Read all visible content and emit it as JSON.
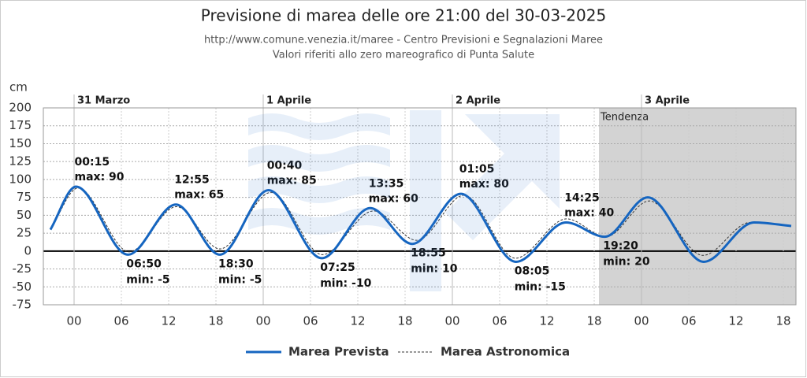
{
  "chart_data": {
    "type": "line",
    "title": "Previsione di marea delle ore 21:00 del 30-03-2025",
    "subtitle": [
      "http://www.comune.venezia.it/maree - Centro Previsioni e Segnalazioni Maree",
      "Valori riferiti allo zero mareografico di Punta Salute"
    ],
    "y_label": "cm",
    "ylim": [
      -75,
      200
    ],
    "yticks": [
      -75,
      -50,
      -25,
      0,
      25,
      50,
      75,
      100,
      125,
      150,
      175,
      200
    ],
    "xlim": [
      -3.9,
      91.6
    ],
    "xticks": [
      {
        "value": 0,
        "label": "00"
      },
      {
        "value": 6,
        "label": "06"
      },
      {
        "value": 12,
        "label": "12"
      },
      {
        "value": 18,
        "label": "18"
      },
      {
        "value": 24,
        "label": "00"
      },
      {
        "value": 30,
        "label": "06"
      },
      {
        "value": 36,
        "label": "12"
      },
      {
        "value": 42,
        "label": "18"
      },
      {
        "value": 48,
        "label": "00"
      },
      {
        "value": 54,
        "label": "06"
      },
      {
        "value": 60,
        "label": "12"
      },
      {
        "value": 66,
        "label": "18"
      },
      {
        "value": 72,
        "label": "00"
      },
      {
        "value": 78,
        "label": "06"
      },
      {
        "value": 84,
        "label": "12"
      },
      {
        "value": 90,
        "label": "18"
      }
    ],
    "days": [
      {
        "x": 0,
        "label": "31 Marzo"
      },
      {
        "x": 24,
        "label": "1 Aprile"
      },
      {
        "x": 48,
        "label": "2 Aprile"
      },
      {
        "x": 72,
        "label": "3 Aprile"
      }
    ],
    "trend": {
      "label": "Tendenza",
      "start": 66.6,
      "color": "#d3d3d3"
    },
    "grid": true,
    "series": [
      {
        "name": "Marea Prevista",
        "color": "#1565c0",
        "style": "solid",
        "x": [
          -3,
          0.25,
          6.83,
          12.92,
          18.5,
          24.67,
          31.42,
          37.58,
          42.92,
          49.08,
          56.08,
          62.42,
          67.33,
          72.8,
          79.9,
          86.3,
          91
        ],
        "values": [
          30,
          90,
          -5,
          65,
          -5,
          85,
          -10,
          60,
          10,
          80,
          -15,
          40,
          20,
          75,
          -15,
          40,
          35
        ]
      },
      {
        "name": "Marea Astronomica",
        "color": "#333333",
        "style": "dashed",
        "x": [
          -3,
          0.5,
          7,
          13,
          18.5,
          25,
          31.5,
          38,
          43.5,
          49.5,
          56,
          62.5,
          67.5,
          73,
          79.8,
          85.8,
          91
        ],
        "values": [
          30,
          88,
          -1,
          62,
          3,
          82,
          -5,
          56,
          15,
          78,
          -10,
          45,
          20,
          70,
          -6,
          40,
          35
        ]
      }
    ],
    "annotations": [
      {
        "time": "00:15",
        "text": "max: 90",
        "x": 0.25,
        "y": 90,
        "kind": "max"
      },
      {
        "time": "06:50",
        "text": "min: -5",
        "x": 6.83,
        "y": -5,
        "kind": "min"
      },
      {
        "time": "12:55",
        "text": "max: 65",
        "x": 12.92,
        "y": 65,
        "kind": "max"
      },
      {
        "time": "18:30",
        "text": "min: -5",
        "x": 18.5,
        "y": -5,
        "kind": "min"
      },
      {
        "time": "00:40",
        "text": "max: 85",
        "x": 24.67,
        "y": 85,
        "kind": "max"
      },
      {
        "time": "07:25",
        "text": "min: -10",
        "x": 31.42,
        "y": -10,
        "kind": "min"
      },
      {
        "time": "13:35",
        "text": "max: 60",
        "x": 37.58,
        "y": 60,
        "kind": "max"
      },
      {
        "time": "18:55",
        "text": "min: 10",
        "x": 42.92,
        "y": 10,
        "kind": "min"
      },
      {
        "time": "01:05",
        "text": "max: 80",
        "x": 49.08,
        "y": 80,
        "kind": "max"
      },
      {
        "time": "08:05",
        "text": "min: -15",
        "x": 56.08,
        "y": -15,
        "kind": "min"
      },
      {
        "time": "14:25",
        "text": "max: 40",
        "x": 62.42,
        "y": 40,
        "kind": "max"
      },
      {
        "time": "19:20",
        "text": "min: 20",
        "x": 67.33,
        "y": 20,
        "kind": "min"
      }
    ]
  }
}
